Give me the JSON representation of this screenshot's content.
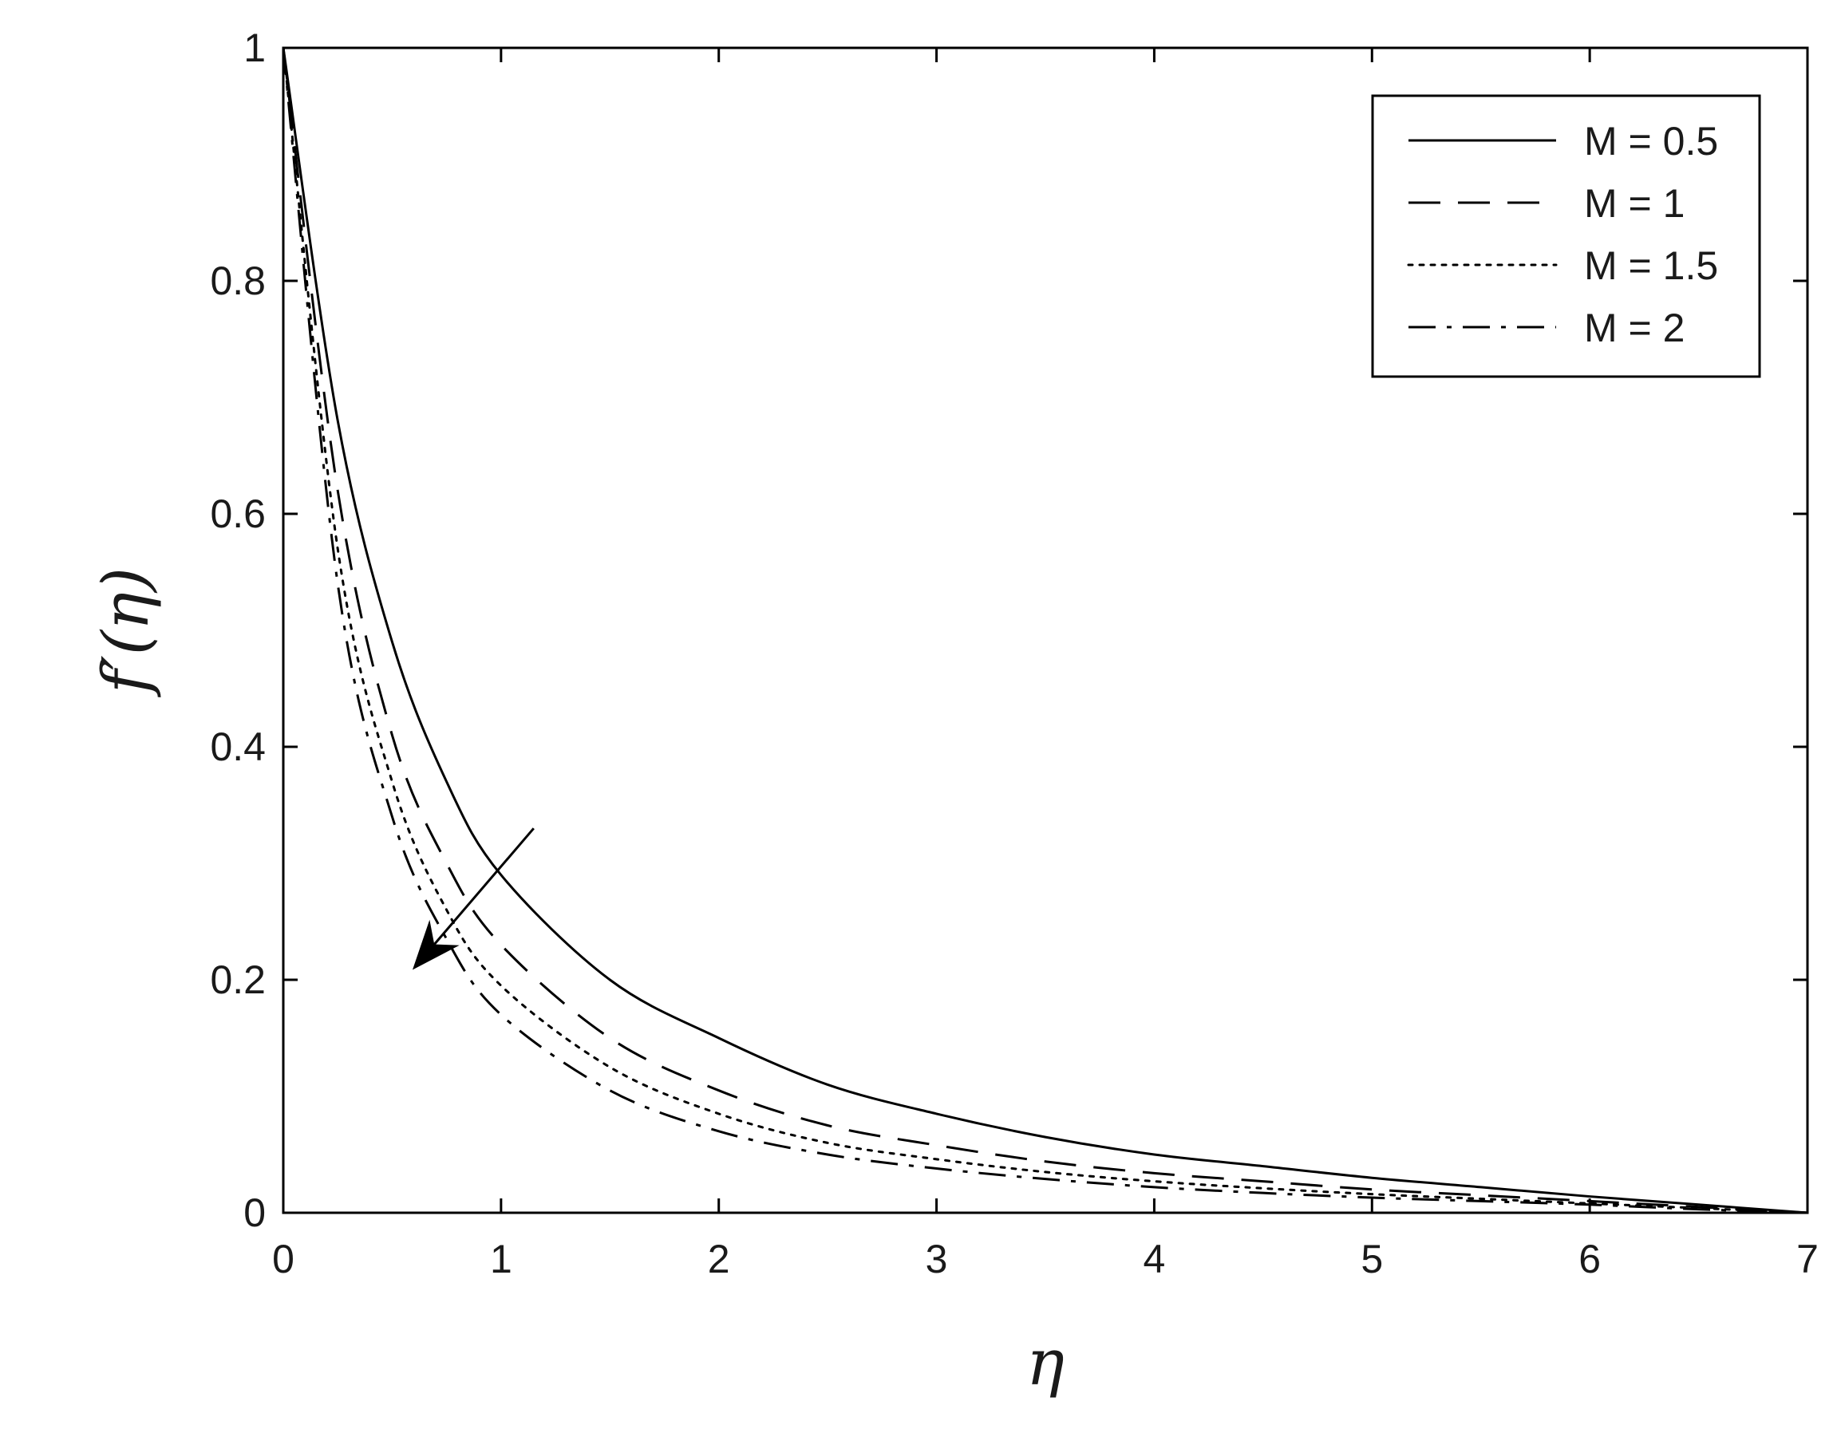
{
  "chart_data": {
    "type": "line",
    "title": "",
    "xlabel": "η",
    "ylabel": "f′(η)",
    "xlim": [
      0,
      7
    ],
    "ylim": [
      0,
      1
    ],
    "xticks": [
      0,
      1,
      2,
      3,
      4,
      5,
      6,
      7
    ],
    "yticks": [
      0,
      0.2,
      0.4,
      0.6,
      0.8,
      1
    ],
    "ytick_labels": [
      "0",
      "0.2",
      "0.4",
      "0.6",
      "0.8",
      "1"
    ],
    "grid": false,
    "legend_position": "top-right",
    "x": [
      0,
      0.25,
      0.5,
      0.75,
      1,
      1.5,
      2,
      2.5,
      3,
      3.5,
      4,
      4.5,
      5,
      5.5,
      6,
      6.5,
      7
    ],
    "series": [
      {
        "name": "M = 0.5",
        "style": "solid",
        "color": "#000000",
        "values": [
          1.0,
          0.68,
          0.49,
          0.37,
          0.29,
          0.2,
          0.15,
          0.11,
          0.085,
          0.065,
          0.05,
          0.04,
          0.03,
          0.022,
          0.014,
          0.007,
          0.0
        ]
      },
      {
        "name": "M = 1",
        "style": "dashed",
        "color": "#000000",
        "values": [
          1.0,
          0.62,
          0.41,
          0.3,
          0.23,
          0.15,
          0.105,
          0.075,
          0.058,
          0.044,
          0.034,
          0.027,
          0.02,
          0.015,
          0.01,
          0.005,
          0.0
        ]
      },
      {
        "name": "M = 1.5",
        "style": "dotted",
        "color": "#000000",
        "values": [
          1.0,
          0.57,
          0.37,
          0.26,
          0.195,
          0.125,
          0.085,
          0.06,
          0.046,
          0.035,
          0.027,
          0.021,
          0.016,
          0.012,
          0.008,
          0.004,
          0.0
        ]
      },
      {
        "name": "M = 2",
        "style": "dashdot",
        "color": "#000000",
        "values": [
          1.0,
          0.54,
          0.34,
          0.235,
          0.17,
          0.105,
          0.07,
          0.05,
          0.038,
          0.029,
          0.022,
          0.017,
          0.013,
          0.01,
          0.007,
          0.003,
          0.0
        ]
      }
    ],
    "annotations": [
      {
        "type": "arrow",
        "from": [
          1.15,
          0.33
        ],
        "to": [
          0.6,
          0.21
        ],
        "meaning": "increasing M"
      }
    ]
  }
}
